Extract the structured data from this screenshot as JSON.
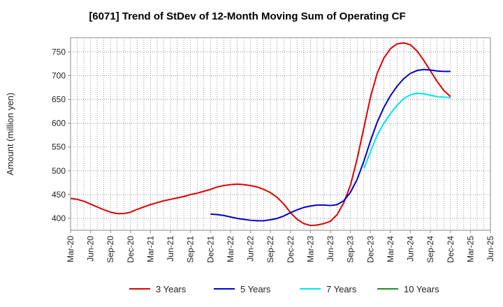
{
  "chart_data": {
    "type": "line",
    "title": "[6071]  Trend of StDev of 12-Month Moving Sum of Operating CF",
    "xlabel": "",
    "ylabel": "Amount (million yen)",
    "ylim": [
      375,
      780
    ],
    "yticks": [
      400,
      450,
      500,
      550,
      600,
      650,
      700,
      750
    ],
    "x_tick_labels": [
      "Mar-20",
      "Jun-20",
      "Sep-20",
      "Dec-20",
      "Mar-21",
      "Jun-21",
      "Sep-21",
      "Dec-21",
      "Mar-22",
      "Jun-22",
      "Sep-22",
      "Dec-22",
      "Mar-23",
      "Jun-23",
      "Sep-23",
      "Dec-23",
      "Mar-24",
      "Jun-24",
      "Sep-24",
      "Dec-24",
      "Mar-25",
      "Jun-25"
    ],
    "grid": true,
    "legend_position": "bottom",
    "series": [
      {
        "name": "3 Years",
        "color": "#dd0000",
        "points": [
          [
            "Mar-20",
            442
          ],
          [
            "Apr-20",
            440
          ],
          [
            "May-20",
            436
          ],
          [
            "Jun-20",
            430
          ],
          [
            "Jul-20",
            424
          ],
          [
            "Aug-20",
            418
          ],
          [
            "Sep-20",
            413
          ],
          [
            "Oct-20",
            410
          ],
          [
            "Nov-20",
            410
          ],
          [
            "Dec-20",
            413
          ],
          [
            "Jan-21",
            419
          ],
          [
            "Feb-21",
            424
          ],
          [
            "Mar-21",
            429
          ],
          [
            "Apr-21",
            433
          ],
          [
            "May-21",
            437
          ],
          [
            "Jun-21",
            440
          ],
          [
            "Jul-21",
            443
          ],
          [
            "Aug-21",
            446
          ],
          [
            "Sep-21",
            450
          ],
          [
            "Oct-21",
            453
          ],
          [
            "Nov-21",
            457
          ],
          [
            "Dec-21",
            461
          ],
          [
            "Jan-22",
            466
          ],
          [
            "Feb-22",
            469
          ],
          [
            "Mar-22",
            471
          ],
          [
            "Apr-22",
            472
          ],
          [
            "May-22",
            471
          ],
          [
            "Jun-22",
            469
          ],
          [
            "Jul-22",
            466
          ],
          [
            "Aug-22",
            461
          ],
          [
            "Sep-22",
            454
          ],
          [
            "Oct-22",
            444
          ],
          [
            "Nov-22",
            430
          ],
          [
            "Dec-22",
            412
          ],
          [
            "Jan-23",
            398
          ],
          [
            "Feb-23",
            389
          ],
          [
            "Mar-23",
            385
          ],
          [
            "Apr-23",
            386
          ],
          [
            "May-23",
            389
          ],
          [
            "Jun-23",
            394
          ],
          [
            "Jul-23",
            408
          ],
          [
            "Aug-23",
            433
          ],
          [
            "Sep-23",
            470
          ],
          [
            "Oct-23",
            525
          ],
          [
            "Nov-23",
            590
          ],
          [
            "Dec-23",
            655
          ],
          [
            "Jan-24",
            705
          ],
          [
            "Feb-24",
            737
          ],
          [
            "Mar-24",
            757
          ],
          [
            "Apr-24",
            767
          ],
          [
            "May-24",
            769
          ],
          [
            "Jun-24",
            765
          ],
          [
            "Jul-24",
            752
          ],
          [
            "Aug-24",
            732
          ],
          [
            "Sep-24",
            710
          ],
          [
            "Oct-24",
            688
          ],
          [
            "Nov-24",
            669
          ],
          [
            "Dec-24",
            656
          ]
        ]
      },
      {
        "name": "5 Years",
        "color": "#0000cc",
        "points": [
          [
            "Dec-21",
            409
          ],
          [
            "Jan-22",
            408
          ],
          [
            "Feb-22",
            406
          ],
          [
            "Mar-22",
            403
          ],
          [
            "Apr-22",
            400
          ],
          [
            "May-22",
            398
          ],
          [
            "Jun-22",
            396
          ],
          [
            "Jul-22",
            395
          ],
          [
            "Aug-22",
            395
          ],
          [
            "Sep-22",
            397
          ],
          [
            "Oct-22",
            400
          ],
          [
            "Nov-22",
            405
          ],
          [
            "Dec-22",
            412
          ],
          [
            "Jan-23",
            418
          ],
          [
            "Feb-23",
            423
          ],
          [
            "Mar-23",
            426
          ],
          [
            "Apr-23",
            428
          ],
          [
            "May-23",
            428
          ],
          [
            "Jun-23",
            427
          ],
          [
            "Jul-23",
            429
          ],
          [
            "Aug-23",
            437
          ],
          [
            "Sep-23",
            455
          ],
          [
            "Oct-23",
            482
          ],
          [
            "Nov-23",
            520
          ],
          [
            "Dec-23",
            563
          ],
          [
            "Jan-24",
            602
          ],
          [
            "Feb-24",
            633
          ],
          [
            "Mar-24",
            658
          ],
          [
            "Apr-24",
            678
          ],
          [
            "May-24",
            694
          ],
          [
            "Jun-24",
            705
          ],
          [
            "Jul-24",
            711
          ],
          [
            "Aug-24",
            713
          ],
          [
            "Sep-24",
            712
          ],
          [
            "Oct-24",
            710
          ],
          [
            "Nov-24",
            709
          ],
          [
            "Dec-24",
            709
          ]
        ]
      },
      {
        "name": "7 Years",
        "color": "#00e5ee",
        "points": [
          [
            "Nov-23",
            505
          ],
          [
            "Dec-23",
            540
          ],
          [
            "Jan-24",
            575
          ],
          [
            "Feb-24",
            600
          ],
          [
            "Mar-24",
            620
          ],
          [
            "Apr-24",
            638
          ],
          [
            "May-24",
            652
          ],
          [
            "Jun-24",
            660
          ],
          [
            "Jul-24",
            663
          ],
          [
            "Aug-24",
            662
          ],
          [
            "Sep-24",
            659
          ],
          [
            "Oct-24",
            656
          ],
          [
            "Nov-24",
            655
          ],
          [
            "Dec-24",
            654
          ]
        ]
      },
      {
        "name": "10 Years",
        "color": "#228b22",
        "points": []
      }
    ]
  }
}
